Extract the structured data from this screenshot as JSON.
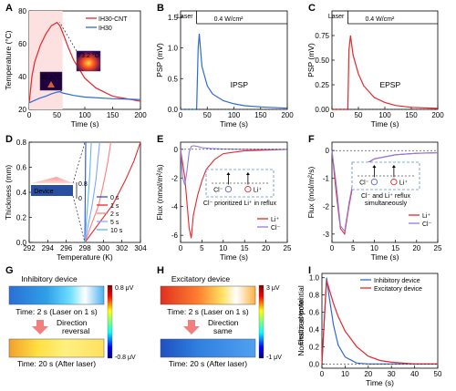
{
  "figure": {
    "panel_labels": [
      "A",
      "B",
      "C",
      "D",
      "E",
      "F",
      "G",
      "H",
      "I"
    ]
  },
  "chart_data": [
    {
      "panel": "A",
      "type": "line",
      "xlabel": "Time (s)",
      "ylabel": "Temperature (°C)",
      "xlim": [
        0,
        200
      ],
      "ylim": [
        20,
        80
      ],
      "xticks": [
        "0",
        "50",
        "100",
        "150",
        "200"
      ],
      "yticks": [
        "20",
        "40",
        "60",
        "80"
      ],
      "series": [
        {
          "name": "IH30-CNT",
          "color": "#e8262b",
          "x": [
            0,
            5,
            10,
            20,
            30,
            40,
            50,
            55,
            60,
            70,
            80,
            100,
            120,
            150,
            200
          ],
          "y": [
            24,
            40,
            49,
            59,
            66,
            71,
            73,
            71,
            67,
            58,
            50,
            39,
            33,
            28,
            25
          ]
        },
        {
          "name": "IH30",
          "color": "#2d6ad8",
          "x": [
            0,
            10,
            20,
            30,
            40,
            50,
            55,
            60,
            80,
            100,
            150,
            200
          ],
          "y": [
            24,
            25.5,
            27,
            28,
            29.5,
            30.5,
            30.8,
            30,
            28.5,
            27.5,
            26.5,
            26
          ]
        }
      ],
      "inset_labels": [
        "30.2 °C",
        "73.2 °C"
      ]
    },
    {
      "panel": "B",
      "type": "line",
      "xlabel": "Time (s)",
      "ylabel": "PSP (mV)",
      "xlim": [
        0,
        200
      ],
      "ylim": [
        0,
        1.6
      ],
      "xticks": [
        "0",
        "50",
        "100",
        "150",
        "200"
      ],
      "yticks": [
        "0.0",
        "0.5",
        "1.0",
        "1.5"
      ],
      "annotations": [
        "Laser",
        "0.4 W/cm²",
        "IPSP"
      ],
      "series": [
        {
          "color": "#2d6ad8",
          "x": [
            0,
            30,
            33,
            35,
            40,
            50,
            60,
            80,
            100,
            120,
            150,
            200
          ],
          "y": [
            0,
            0,
            1.0,
            1.23,
            0.7,
            0.38,
            0.25,
            0.14,
            0.09,
            0.06,
            0.04,
            0.02
          ]
        }
      ]
    },
    {
      "panel": "C",
      "type": "line",
      "xlabel": "Time (s)",
      "ylabel": "PSP (mV)",
      "xlim": [
        0,
        200
      ],
      "ylim": [
        0,
        1.0
      ],
      "xticks": [
        "0",
        "50",
        "100",
        "150",
        "200"
      ],
      "yticks": [
        "0.00",
        "0.25",
        "0.50",
        "0.75"
      ],
      "annotations": [
        "Laser",
        "0.4 W/cm²",
        "EPSP"
      ],
      "series": [
        {
          "color": "#e8262b",
          "x": [
            0,
            30,
            32,
            35,
            40,
            50,
            60,
            80,
            100,
            120,
            150,
            200
          ],
          "y": [
            0,
            0,
            0.6,
            0.75,
            0.55,
            0.36,
            0.24,
            0.12,
            0.07,
            0.04,
            0.02,
            0.01
          ]
        }
      ]
    },
    {
      "panel": "D",
      "type": "line",
      "xlabel": "Temperature (K)",
      "ylabel": "Thickness (mm)",
      "xlim": [
        292,
        304
      ],
      "ylim": [
        0,
        0.8
      ],
      "xticks": [
        "292",
        "294",
        "296",
        "298",
        "300",
        "302",
        "304"
      ],
      "yticks": [
        "0.0",
        "0.2",
        "0.4",
        "0.6",
        "0.8"
      ],
      "inset": {
        "label": "Device",
        "ticks": [
          "0.8",
          "0"
        ]
      },
      "series": [
        {
          "name": "0 s",
          "color": "#2d4fd8",
          "x": [
            298,
            298.05,
            298.1
          ],
          "y": [
            0,
            0.4,
            0.8
          ]
        },
        {
          "name": "1 s",
          "color": "#e8262b",
          "x": [
            298,
            301,
            302.4,
            303.3,
            304.0
          ],
          "y": [
            0,
            0.3,
            0.5,
            0.65,
            0.8
          ]
        },
        {
          "name": "2 s",
          "color": "#ff7f7f",
          "x": [
            298,
            299.5,
            300.1,
            300.5,
            300.8
          ],
          "y": [
            0,
            0.3,
            0.5,
            0.65,
            0.8
          ]
        },
        {
          "name": "5 s",
          "color": "#7fa8ff",
          "x": [
            298,
            298.8,
            299.2,
            299.4,
            299.6
          ],
          "y": [
            0,
            0.3,
            0.5,
            0.65,
            0.8
          ]
        },
        {
          "name": "10 s",
          "color": "#5fb8e8",
          "x": [
            298,
            298.3,
            298.5,
            298.6,
            298.7
          ],
          "y": [
            0,
            0.3,
            0.5,
            0.65,
            0.8
          ]
        }
      ]
    },
    {
      "panel": "E",
      "type": "line",
      "xlabel": "Time (s)",
      "ylabel": "Flux (nmol/m²/s)",
      "xlim": [
        0,
        25
      ],
      "ylim": [
        -6.5,
        0.5
      ],
      "xticks": [
        "0",
        "5",
        "10",
        "15",
        "20",
        "25"
      ],
      "yticks": [
        "-6",
        "-4",
        "-2",
        "0"
      ],
      "inset_caption": "Cl⁻ prioritized Li⁺ in reflux",
      "series": [
        {
          "name": "Li⁺",
          "color": "#e8262b",
          "x": [
            0,
            1,
            2,
            2.5,
            3,
            4,
            5,
            6,
            8,
            10,
            15,
            25
          ],
          "y": [
            0,
            -2,
            -5.5,
            -6.2,
            -4.6,
            -3.2,
            -2.2,
            -1.4,
            -0.7,
            -0.3,
            -0.1,
            0
          ]
        },
        {
          "name": "Cl⁻",
          "color": "#8a7fe0",
          "x": [
            0,
            0.5,
            1,
            1.5,
            2,
            2.5,
            3,
            4,
            5,
            7,
            10,
            15,
            25
          ],
          "y": [
            0,
            -2,
            -2.5,
            -1.5,
            -0.2,
            0.2,
            0.25,
            0.2,
            0.12,
            0.06,
            0.02,
            0,
            0
          ]
        }
      ]
    },
    {
      "panel": "F",
      "type": "line",
      "xlabel": "Time (s)",
      "ylabel": "Flux (mol/m²/s)",
      "xlim": [
        0,
        25
      ],
      "ylim": [
        -3.3,
        0.3
      ],
      "xticks": [
        "0",
        "5",
        "10",
        "15",
        "20",
        "25"
      ],
      "yticks": [
        "-3",
        "-2",
        "-1",
        "0"
      ],
      "inset_caption": "Cl⁻ and Li⁺ reflux simultaneously",
      "series": [
        {
          "name": "Li⁺",
          "color": "#e8262b",
          "x": [
            0,
            1,
            2,
            3,
            4,
            5,
            7,
            10,
            15,
            20,
            25
          ],
          "y": [
            0,
            -1.5,
            -2.8,
            -3.0,
            -2.0,
            -1.2,
            -0.6,
            -0.3,
            -0.15,
            -0.1,
            -0.08
          ]
        },
        {
          "name": "Cl⁻",
          "color": "#8a7fe0",
          "x": [
            0,
            1,
            2,
            3,
            4,
            5,
            7,
            10,
            15,
            20,
            25
          ],
          "y": [
            0,
            -1.2,
            -2.7,
            -2.9,
            -1.9,
            -1.1,
            -0.55,
            -0.3,
            -0.15,
            -0.1,
            -0.08
          ]
        }
      ]
    },
    {
      "panel": "I",
      "type": "line",
      "xlabel": "Time (s)",
      "ylabel": "Normalized potential",
      "xlim": [
        0,
        50
      ],
      "ylim": [
        -0.05,
        1.05
      ],
      "xticks": [
        "0",
        "10",
        "20",
        "30",
        "40",
        "50"
      ],
      "yticks": [
        "0.0",
        "0.2",
        "0.4",
        "0.6",
        "0.8",
        "1.0"
      ],
      "series": [
        {
          "name": "Inhibitory device",
          "color": "#2d6ad8",
          "x": [
            0,
            1,
            2,
            3,
            5,
            7,
            10,
            15,
            20,
            30,
            50
          ],
          "y": [
            0,
            0.5,
            1.0,
            0.8,
            0.45,
            0.22,
            0.08,
            0.01,
            0,
            0,
            0
          ]
        },
        {
          "name": "Excitatory device",
          "color": "#e8262b",
          "x": [
            0,
            1,
            2,
            3,
            5,
            7,
            10,
            15,
            20,
            25,
            30,
            40,
            50
          ],
          "y": [
            0,
            0.5,
            0.97,
            0.88,
            0.7,
            0.55,
            0.38,
            0.2,
            0.09,
            0.04,
            0.02,
            0,
            0
          ]
        }
      ]
    }
  ],
  "panel_G": {
    "title": "Inhibitory device",
    "top_caption": "Time: 2 s (Laser on 1 s)",
    "arrow_label": "Direction reversal",
    "bottom_caption": "Time: 20 s (After laser)",
    "colorbar": [
      "0.8 μV",
      "-0.8 μV"
    ]
  },
  "panel_H": {
    "title": "Excitatory device",
    "top_caption": "Time: 2 s (Laser on 1 s)",
    "arrow_label": "Direction same",
    "bottom_caption": "Time: 20 s (After laser)",
    "colorbar": [
      "3 μV",
      "-1 μV"
    ],
    "colorbar_title": "Electric potential"
  },
  "ions": {
    "cl": "Cl⁻",
    "li": "Li⁺"
  }
}
